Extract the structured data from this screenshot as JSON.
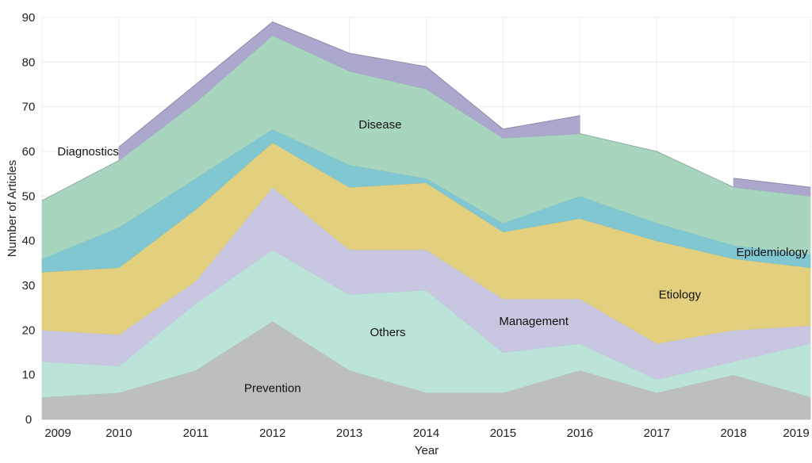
{
  "chart_data": {
    "type": "area",
    "stacked": true,
    "xlabel": "Year",
    "ylabel": "Number of Articles",
    "x": [
      2009,
      2010,
      2011,
      2012,
      2013,
      2014,
      2015,
      2016,
      2017,
      2018,
      2019
    ],
    "ylim": [
      0,
      90
    ],
    "yticks": [
      0,
      10,
      20,
      30,
      40,
      50,
      60,
      70,
      80,
      90
    ],
    "grid": true,
    "legend": "none",
    "series": [
      {
        "name": "Prevention",
        "color": "#bdbfbf",
        "values": [
          5,
          6,
          11,
          22,
          11,
          6,
          6,
          11,
          6,
          10,
          5
        ]
      },
      {
        "name": "Others",
        "color": "#bce3d9",
        "values": [
          8,
          6,
          15,
          16,
          17,
          23,
          9,
          6,
          3,
          3,
          12
        ]
      },
      {
        "name": "Management",
        "color": "#c9c6e2",
        "values": [
          7,
          7,
          5,
          14,
          10,
          9,
          12,
          10,
          8,
          7,
          4
        ]
      },
      {
        "name": "Etiology",
        "color": "#e2d07e",
        "values": [
          13,
          15,
          16,
          10,
          14,
          15,
          15,
          18,
          23,
          16,
          13
        ]
      },
      {
        "name": "Epidemiology",
        "color": "#80c7d2",
        "values": [
          3,
          9,
          7,
          3,
          5,
          1,
          2,
          5,
          4,
          3,
          3
        ]
      },
      {
        "name": "Disease",
        "color": "#a8d5bd",
        "values": [
          13,
          15,
          17,
          21,
          21,
          20,
          19,
          14,
          16,
          13,
          13
        ]
      },
      {
        "name": "Diagnostics",
        "color": "#aba7cd",
        "values": [
          null,
          3,
          4,
          3,
          4,
          5,
          2,
          4,
          null,
          2,
          2
        ]
      }
    ]
  }
}
